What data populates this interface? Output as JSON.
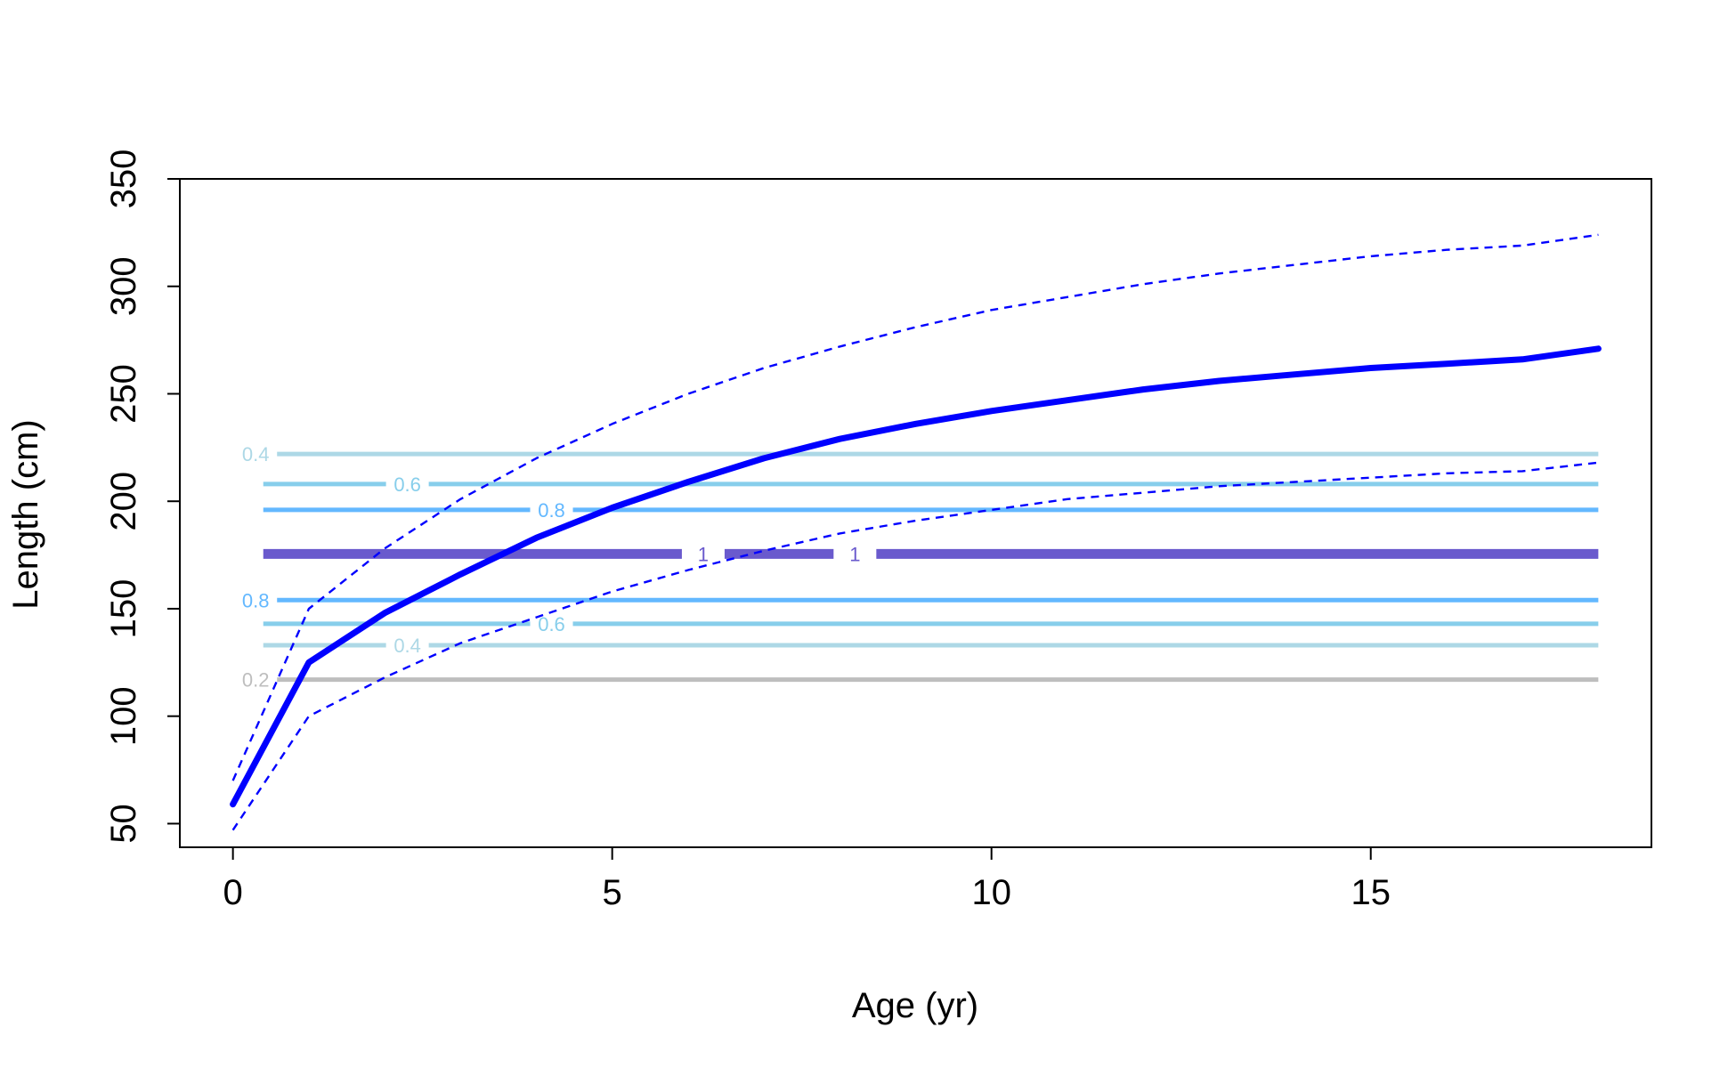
{
  "chart_data": {
    "type": "line",
    "xlabel": "Age (yr)",
    "ylabel": "Length (cm)",
    "xlim": [
      -0.7,
      18.7
    ],
    "ylim": [
      39,
      350
    ],
    "xticks": [
      0,
      5,
      10,
      15
    ],
    "xtick_labels": [
      "0",
      "5",
      "10",
      "15"
    ],
    "yticks": [
      50,
      100,
      150,
      200,
      250,
      300,
      350
    ],
    "ytick_labels": [
      "50",
      "100",
      "150",
      "200",
      "250",
      "300",
      "350"
    ],
    "grid": false,
    "legend": "none",
    "series": [
      {
        "style": "solid-thick",
        "color": "#0000FF",
        "x": [
          0,
          1,
          2,
          3,
          4,
          5,
          6,
          7,
          8,
          9,
          10,
          11,
          12,
          13,
          14,
          15,
          16,
          17,
          18
        ],
        "y": [
          59,
          125,
          148,
          166,
          183,
          197,
          209,
          220,
          229,
          236,
          242,
          247,
          252,
          256,
          259,
          262,
          264,
          266,
          271
        ]
      },
      {
        "style": "dashed",
        "color": "#0000FF",
        "x": [
          0,
          1,
          2,
          3,
          4,
          5,
          6,
          7,
          8,
          9,
          10,
          11,
          12,
          13,
          14,
          15,
          16,
          17,
          18
        ],
        "y": [
          70,
          150,
          178,
          201,
          220,
          236,
          250,
          262,
          272,
          281,
          289,
          295,
          301,
          306,
          310,
          314,
          317,
          319,
          324
        ]
      },
      {
        "style": "dashed",
        "color": "#0000FF",
        "x": [
          0,
          1,
          2,
          3,
          4,
          5,
          6,
          7,
          8,
          9,
          10,
          11,
          12,
          13,
          14,
          15,
          16,
          17,
          18
        ],
        "y": [
          47,
          100,
          118,
          134,
          146,
          158,
          168,
          177,
          185,
          191,
          196,
          201,
          204,
          207,
          209,
          211,
          213,
          214,
          218
        ]
      }
    ],
    "contours": [
      {
        "level": "1",
        "y": 175.5,
        "color": "#6A5ACD",
        "label_x": [
          6.2,
          8.2
        ]
      },
      {
        "level": "0.8",
        "y": 196,
        "color": "#63B8FF",
        "label_x": [
          4.2
        ]
      },
      {
        "level": "0.6",
        "y": 208,
        "color": "#87CEEB",
        "label_x": [
          2.3
        ]
      },
      {
        "level": "0.4",
        "y": 222,
        "color": "#ADD8E6",
        "label_x": [
          0.3
        ]
      },
      {
        "level": "0.8",
        "y": 154,
        "color": "#63B8FF",
        "label_x": [
          0.3
        ]
      },
      {
        "level": "0.6",
        "y": 143,
        "color": "#87CEEB",
        "label_x": [
          4.2
        ]
      },
      {
        "level": "0.4",
        "y": 133,
        "color": "#ADD8E6",
        "label_x": [
          2.3
        ]
      },
      {
        "level": "0.2",
        "y": 117,
        "color": "#BEBEBE",
        "label_x": [
          0.3
        ]
      }
    ],
    "contour_x_range": [
      0.4,
      18
    ]
  }
}
